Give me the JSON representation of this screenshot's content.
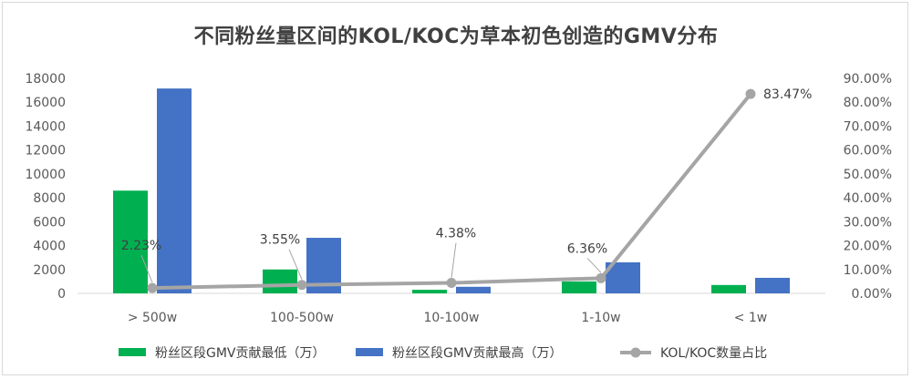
{
  "chart_data": {
    "type": "bar+line",
    "title": "不同粉丝量区间的KOL/KOC为草本初色创造的GMV分布",
    "categories": [
      "> 500w",
      "100-500w",
      "10-100w",
      "1-10w",
      "< 1w"
    ],
    "series": [
      {
        "name": "粉丝区段GMV贡献最低（万）",
        "type": "bar",
        "axis": "left",
        "color": "#00b050",
        "values": [
          8600,
          2000,
          300,
          1000,
          700
        ]
      },
      {
        "name": "粉丝区段GMV贡献最高（万）",
        "type": "bar",
        "axis": "left",
        "color": "#4472c4",
        "values": [
          17150,
          4650,
          550,
          2600,
          1300
        ]
      },
      {
        "name": "KOL/KOC数量占比",
        "type": "line",
        "axis": "right",
        "color": "#a5a5a5",
        "values": [
          2.23,
          3.55,
          4.38,
          6.36,
          83.47
        ],
        "labels": [
          "2.23%",
          "3.55%",
          "4.38%",
          "6.36%",
          "83.47%"
        ]
      }
    ],
    "left_axis": {
      "min": 0,
      "max": 18000,
      "step": 2000,
      "ticks": [
        "0",
        "2000",
        "4000",
        "6000",
        "8000",
        "10000",
        "12000",
        "14000",
        "16000",
        "18000"
      ]
    },
    "right_axis": {
      "min": 0,
      "max": 90,
      "step": 10,
      "ticks": [
        "0.00%",
        "10.00%",
        "20.00%",
        "30.00%",
        "40.00%",
        "50.00%",
        "60.00%",
        "70.00%",
        "80.00%",
        "90.00%"
      ]
    },
    "grid": false,
    "legend_position": "bottom"
  }
}
